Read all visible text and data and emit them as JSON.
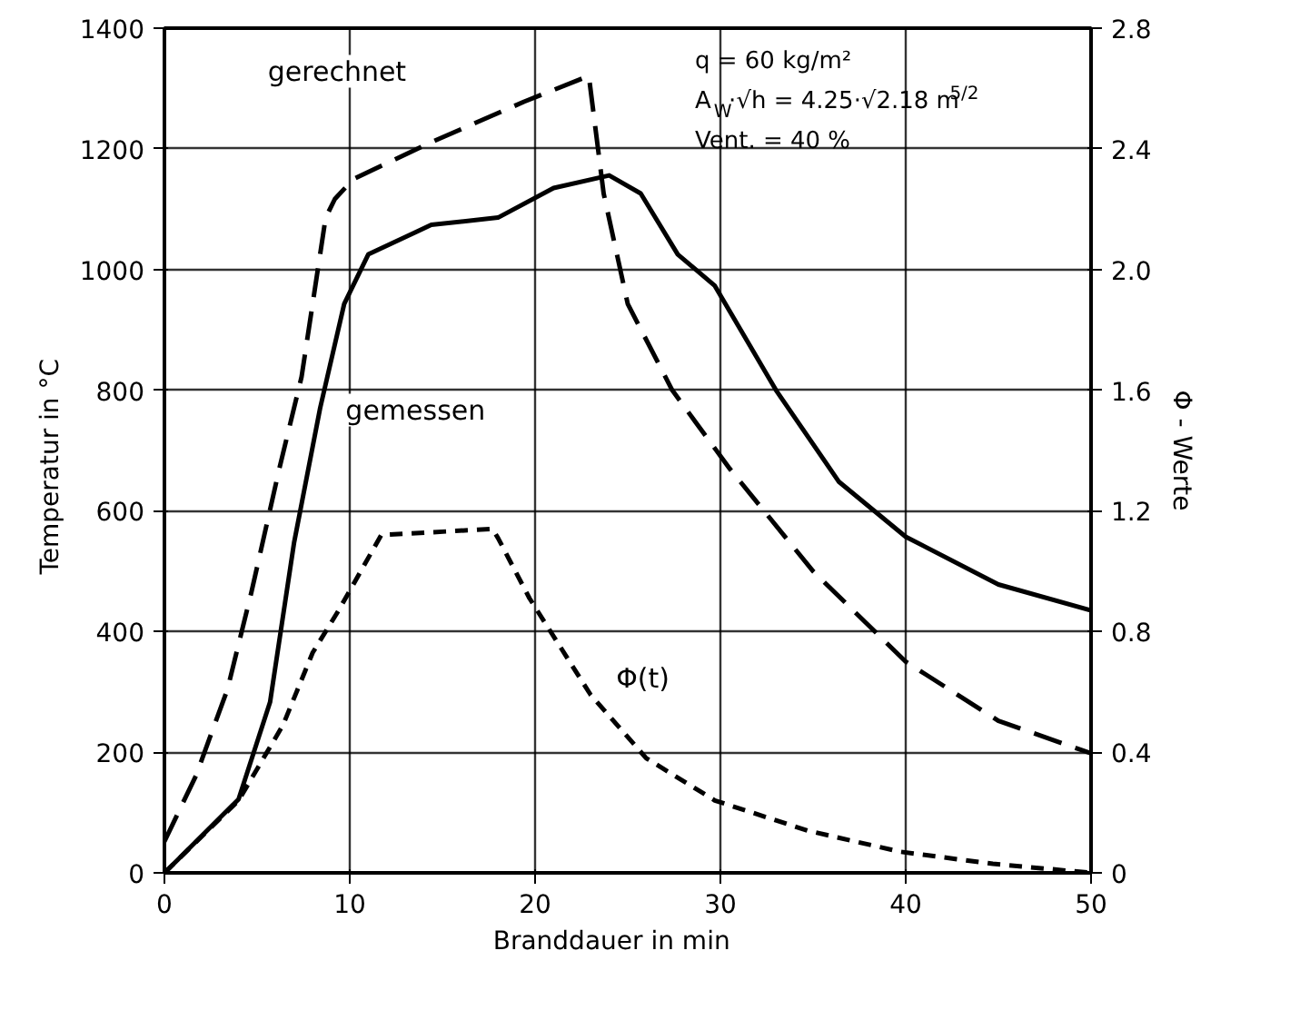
{
  "chart_data": {
    "type": "line",
    "xlabel": "Branddauer   in   min",
    "ylabel": "Temperatur   in   °C",
    "y2label": "Φ - Werte",
    "xlim": [
      0,
      50
    ],
    "xticks": [
      0,
      10,
      20,
      30,
      40,
      50
    ],
    "ylim": [
      0,
      1400
    ],
    "yticks": [
      0,
      200,
      400,
      600,
      800,
      1000,
      1200,
      1400
    ],
    "y2lim": [
      0,
      2.8
    ],
    "y2ticks": [
      0,
      0.4,
      0.8,
      1.2,
      1.6,
      {
        "value": 2.0,
        "label": "2.0"
      },
      2.4,
      2.8
    ],
    "grid": true,
    "series": [
      {
        "name": "gerechnet",
        "color": "#000000",
        "line_style": "dashed",
        "x": [
          0,
          1.7,
          3.4,
          4.7,
          6.2,
          7.4,
          8.7,
          9.2,
          10.2,
          14.4,
          19.4,
          22.9,
          23.7,
          25,
          27.4,
          30.5,
          35,
          40,
          45,
          50
        ],
        "values": [
          52,
          161,
          304,
          466,
          670,
          822,
          1086,
          1117,
          1150,
          1211,
          1278,
          1321,
          1126,
          943,
          800,
          670,
          500,
          350,
          252,
          198
        ]
      },
      {
        "name": "gemessen",
        "color": "#000000",
        "line_style": "solid",
        "x": [
          0,
          0.7,
          4,
          5.7,
          7,
          8.4,
          9.7,
          11,
          14.4,
          18,
          21,
          24,
          25.7,
          27.7,
          29.7,
          33,
          36.4,
          40,
          45,
          50
        ],
        "values": [
          0,
          21,
          122,
          283,
          548,
          770,
          943,
          1025,
          1074,
          1086,
          1135,
          1156,
          1126,
          1025,
          973,
          800,
          648,
          557,
          478,
          435
        ]
      },
      {
        "name": "Φ(t)",
        "color": "#000000",
        "line_style": "dotted",
        "axis": "y2",
        "x": [
          0,
          4,
          6.4,
          8,
          9.4,
          11.7,
          17.7,
          18,
          19.7,
          23,
          26,
          29.7,
          34.7,
          39.7,
          44.7,
          50
        ],
        "values": [
          0,
          0.24,
          0.49,
          0.73,
          0.87,
          1.12,
          1.14,
          1.11,
          0.91,
          0.59,
          0.38,
          0.24,
          0.14,
          0.07,
          0.03,
          0
        ]
      }
    ],
    "annotations": [
      "q        = 60 kg/m²",
      "A$_{W}$·√h = 4.25·√2.18 m$^{5/2}$",
      "Vent.  = 40 %"
    ]
  }
}
